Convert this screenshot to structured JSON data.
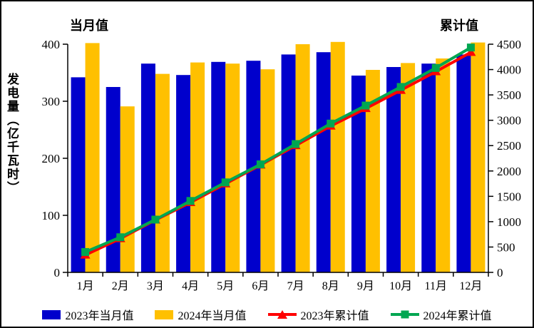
{
  "chart_data": {
    "type": "bar",
    "combo": "bar+line-dual-axis",
    "title_left": "当月值",
    "title_right": "累计值",
    "ylabel": "发电量（亿千瓦时）",
    "categories": [
      "1月",
      "2月",
      "3月",
      "4月",
      "5月",
      "6月",
      "7月",
      "8月",
      "9月",
      "10月",
      "11月",
      "12月"
    ],
    "series": [
      {
        "name": "2023年当月值",
        "type": "bar",
        "axis": "left",
        "color": "#0000CC",
        "values": [
          342,
          325,
          366,
          346,
          369,
          371,
          382,
          386,
          345,
          360,
          366,
          382
        ]
      },
      {
        "name": "2024年当月值",
        "type": "bar",
        "axis": "left",
        "color": "#FFC000",
        "values": [
          402,
          291,
          348,
          368,
          366,
          356,
          400,
          404,
          355,
          367,
          375,
          403
        ]
      },
      {
        "name": "2023年累计值",
        "type": "line",
        "marker": "triangle",
        "axis": "right",
        "color": "#FF0000",
        "values": [
          342,
          667,
          1033,
          1379,
          1748,
          2119,
          2501,
          2887,
          3232,
          3592,
          3958,
          4340
        ]
      },
      {
        "name": "2024年累计值",
        "type": "line",
        "marker": "square",
        "axis": "right",
        "color": "#00A651",
        "values": [
          402,
          693,
          1041,
          1409,
          1775,
          2131,
          2531,
          2935,
          3290,
          3657,
          4032,
          4435
        ]
      }
    ],
    "left_axis": {
      "min": 0,
      "max": 400,
      "step": 100
    },
    "right_axis": {
      "min": 0,
      "max": 4500,
      "step": 500
    },
    "legend_position": "bottom",
    "grid": false,
    "frame_color": "#000000",
    "background": "#FFFFFF"
  }
}
